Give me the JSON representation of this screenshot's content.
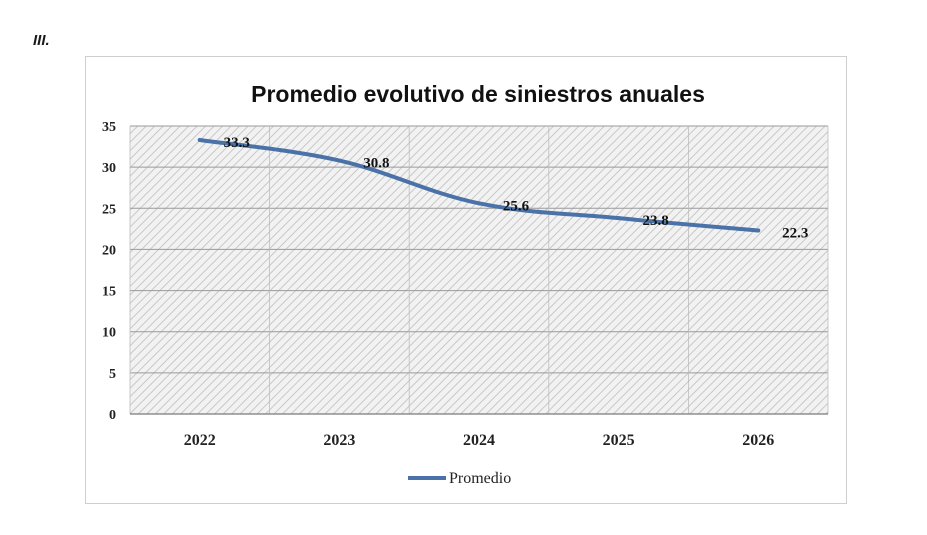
{
  "section": {
    "label": "III."
  },
  "chart_data": {
    "type": "line",
    "title": "Promedio evolutivo de siniestros anuales",
    "xlabel": "",
    "ylabel": "",
    "categories": [
      "2022",
      "2023",
      "2024",
      "2025",
      "2026"
    ],
    "series": [
      {
        "name": "Promedio",
        "values": [
          33.3,
          30.8,
          25.6,
          23.8,
          22.3
        ],
        "color": "#4a72a8"
      }
    ],
    "data_labels": [
      "33.3",
      "30.8",
      "25.6",
      "23.8",
      "22.3"
    ],
    "ylim": [
      0,
      35
    ],
    "yticks": [
      0,
      5,
      10,
      15,
      20,
      25,
      30,
      35
    ],
    "grid": true,
    "plot_background": "hatched-gray",
    "legend_position": "bottom"
  }
}
